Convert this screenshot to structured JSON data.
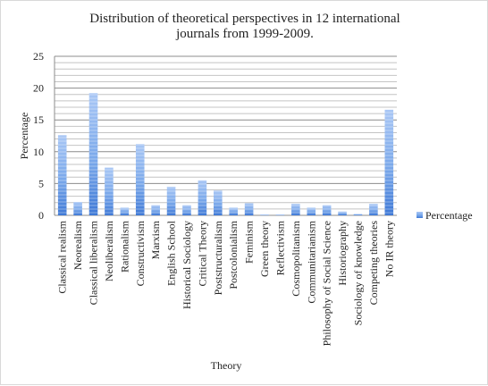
{
  "chart_data": {
    "type": "bar",
    "title_lines": [
      "Distribution of theoretical perspectives in 12 international",
      "journals from 1999-2009."
    ],
    "xlabel": "Theory",
    "ylabel": "Percentage",
    "ylim": [
      0,
      25
    ],
    "yticks": [
      0,
      5,
      10,
      15,
      20,
      25
    ],
    "grid": true,
    "legend": {
      "position": "right",
      "entries": [
        "Percentage"
      ]
    },
    "series_color": "#6fa0e6",
    "categories": [
      "Classical realism",
      "Neorealism",
      "Classical liberalism",
      "Neoliberalism",
      "Rationalism",
      "Constructivism",
      "Marxism",
      "English School",
      "Historical Sociology",
      "Critical Theory",
      "Poststructuralism",
      "Postcolonialism",
      "Feminism",
      "Green theory",
      "Reflectivism",
      "Cosmopolitanism",
      "Communitarianism",
      "Philosophy of Social Science",
      "Historiography",
      "Sociology of knowledge",
      "Competing theories",
      "No IR theory"
    ],
    "series": [
      {
        "name": "Percentage",
        "values": [
          12.6,
          2.1,
          19.2,
          7.5,
          1.2,
          11.2,
          1.6,
          4.5,
          1.6,
          5.5,
          3.9,
          1.2,
          1.9,
          0.1,
          0.1,
          1.8,
          1.2,
          1.6,
          0.6,
          0.2,
          1.8,
          16.6
        ]
      }
    ]
  }
}
